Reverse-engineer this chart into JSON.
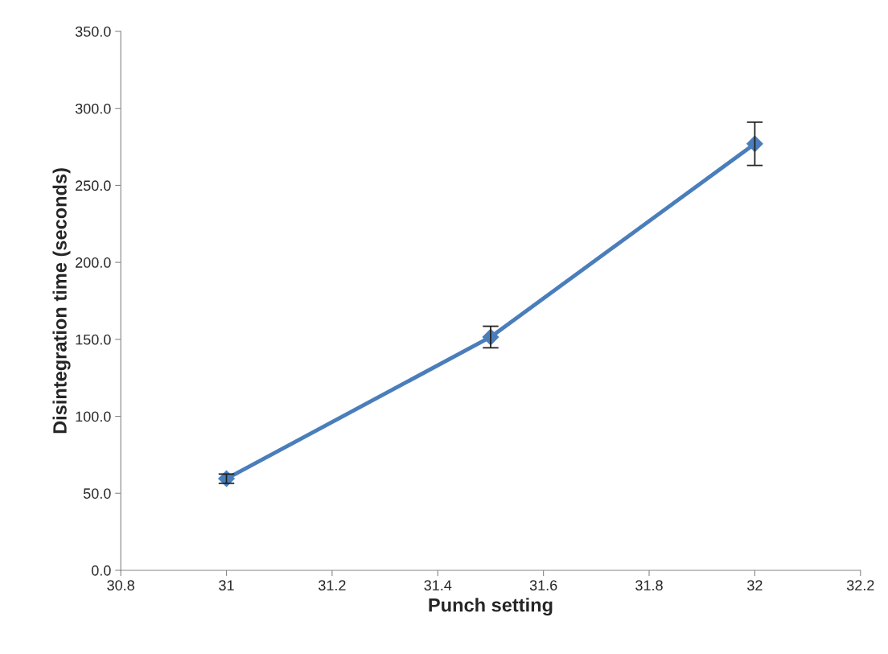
{
  "chart_data": {
    "type": "line",
    "xlabel": "Punch setting",
    "ylabel": "Disintegration time (seconds)",
    "x": [
      31,
      31.5,
      32
    ],
    "series": [
      {
        "color": "#4a7ebb",
        "values": [
          59.5,
          151.5,
          277
        ],
        "errors": [
          3,
          7,
          14
        ]
      }
    ],
    "xlim": [
      30.8,
      32.2
    ],
    "xticks": [
      30.8,
      31,
      31.2,
      31.4,
      31.6,
      31.8,
      32,
      32.2
    ],
    "ylim": [
      0,
      350
    ],
    "yticks": [
      {
        "value": 0,
        "label": "0.0"
      },
      {
        "value": 50,
        "label": "50.0"
      },
      {
        "value": 100,
        "label": "100.0"
      },
      {
        "value": 150,
        "label": "150.0"
      },
      {
        "value": 200,
        "label": "200.0"
      },
      {
        "value": 250,
        "label": "250.0"
      },
      {
        "value": 300,
        "label": "300.0"
      },
      {
        "value": 350,
        "label": "350.0"
      }
    ],
    "grid": false,
    "marker": "diamond",
    "line_style": "solid"
  }
}
